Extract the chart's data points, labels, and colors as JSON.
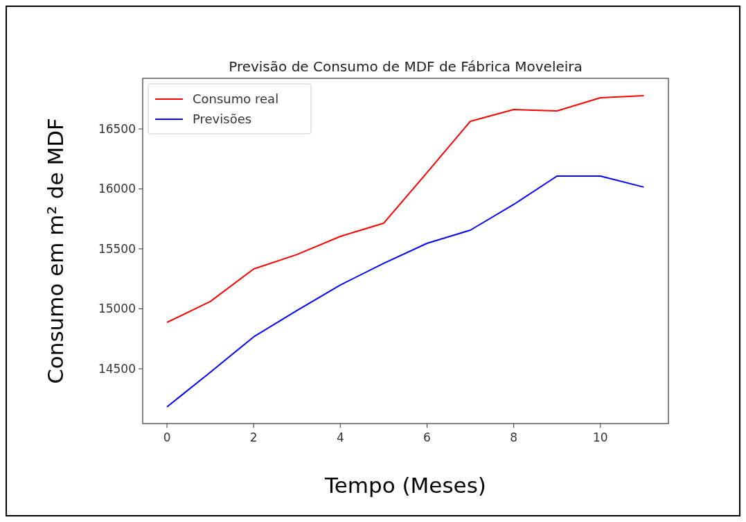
{
  "chart_data": {
    "type": "line",
    "title": "Previsão de Consumo de MDF de Fábrica Moveleira",
    "xlabel": "Tempo (Meses)",
    "ylabel": "Consumo em m² de MDF",
    "x": [
      0,
      1,
      2,
      3,
      4,
      5,
      6,
      7,
      8,
      9,
      10,
      11
    ],
    "series": [
      {
        "name": "Consumo real",
        "color": "#ff0000",
        "values": [
          14887,
          15061,
          15332,
          15453,
          15604,
          15714,
          16136,
          16564,
          16662,
          16650,
          16760,
          16777
        ]
      },
      {
        "name": "Previsões",
        "color": "#0000ff",
        "values": [
          14182,
          14471,
          14766,
          14986,
          15199,
          15379,
          15546,
          15656,
          15870,
          16107,
          16107,
          16015
        ]
      }
    ],
    "xlim": [
      -0.56,
      11.57
    ],
    "ylim": [
      14043,
      16922
    ],
    "xticks": [
      0,
      2,
      4,
      6,
      8,
      10
    ],
    "yticks": [
      14500,
      15000,
      15500,
      16000,
      16500
    ],
    "grid": false,
    "legend": "top left"
  }
}
